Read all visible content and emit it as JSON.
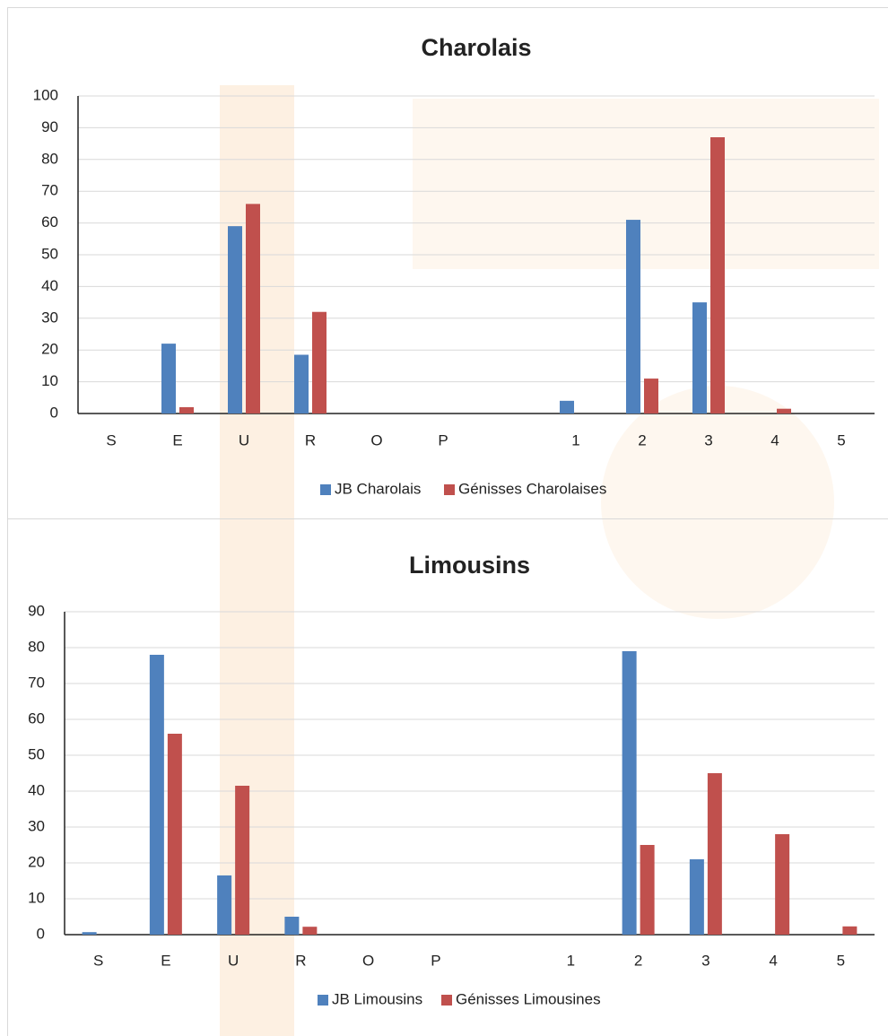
{
  "chart_data": [
    {
      "type": "bar",
      "title": "Charolais",
      "categories": [
        "S",
        "E",
        "U",
        "R",
        "O",
        "P",
        null,
        "1",
        "2",
        "3",
        "4",
        "5"
      ],
      "series": [
        {
          "name": "JB Charolais",
          "color": "#4f81bd",
          "values": [
            0,
            22,
            59,
            18.5,
            0,
            0,
            null,
            4,
            61,
            35,
            0,
            0
          ]
        },
        {
          "name": "Génisses Charolaises",
          "color": "#c0504d",
          "values": [
            0,
            2,
            66,
            32,
            0,
            0,
            null,
            0,
            11,
            87,
            1.5,
            0
          ]
        }
      ],
      "ylim": [
        0,
        100
      ],
      "yticks": [
        0,
        10,
        20,
        30,
        40,
        50,
        60,
        70,
        80,
        90,
        100
      ],
      "grid": true,
      "legend": "bottom"
    },
    {
      "type": "bar",
      "title": "Limousins",
      "categories": [
        "S",
        "E",
        "U",
        "R",
        "O",
        "P",
        null,
        "1",
        "2",
        "3",
        "4",
        "5"
      ],
      "series": [
        {
          "name": "JB Limousins",
          "color": "#4f81bd",
          "values": [
            0.7,
            78,
            16.5,
            5,
            0,
            0,
            null,
            0,
            79,
            21,
            0,
            0
          ]
        },
        {
          "name": "Génisses Limousines",
          "color": "#c0504d",
          "values": [
            0,
            56,
            41.5,
            2.2,
            0,
            0,
            null,
            0,
            25,
            45,
            28,
            2.3
          ]
        }
      ],
      "ylim": [
        0,
        90
      ],
      "yticks": [
        0,
        10,
        20,
        30,
        40,
        50,
        60,
        70,
        80,
        90
      ],
      "grid": true,
      "legend": "bottom"
    }
  ]
}
